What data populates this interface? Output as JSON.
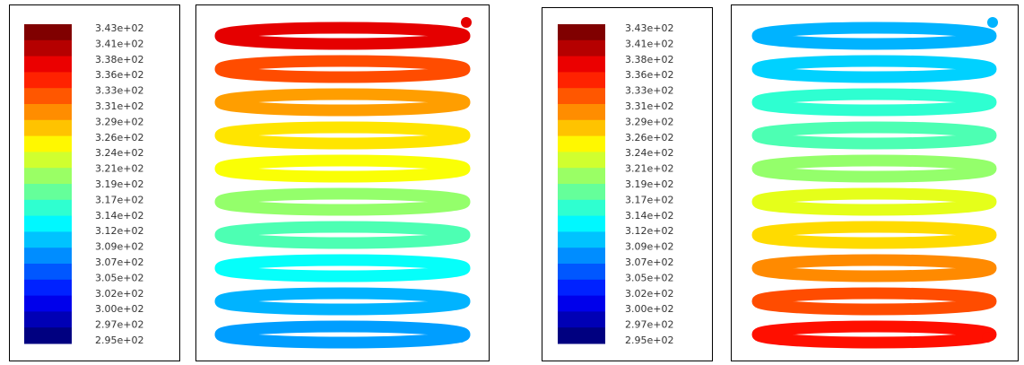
{
  "panels": [
    {
      "legend_labels": [
        "3.43e+02",
        "3.41e+02",
        "3.38e+02",
        "3.36e+02",
        "3.33e+02",
        "3.31e+02",
        "3.29e+02",
        "3.26e+02",
        "3.24e+02",
        "3.21e+02",
        "3.19e+02",
        "3.17e+02",
        "3.14e+02",
        "3.12e+02",
        "3.09e+02",
        "3.07e+02",
        "3.05e+02",
        "3.02e+02",
        "3.00e+02",
        "2.97e+02",
        "2.95e+02"
      ]
    },
    {
      "legend_labels": [
        "3.43e+02",
        "3.41e+02",
        "3.38e+02",
        "3.36e+02",
        "3.33e+02",
        "3.31e+02",
        "3.29e+02",
        "3.26e+02",
        "3.24e+02",
        "3.21e+02",
        "3.19e+02",
        "3.17e+02",
        "3.14e+02",
        "3.12e+02",
        "3.09e+02",
        "3.07e+02",
        "3.05e+02",
        "3.02e+02",
        "3.00e+02",
        "2.97e+02",
        "2.95e+02"
      ]
    }
  ]
}
